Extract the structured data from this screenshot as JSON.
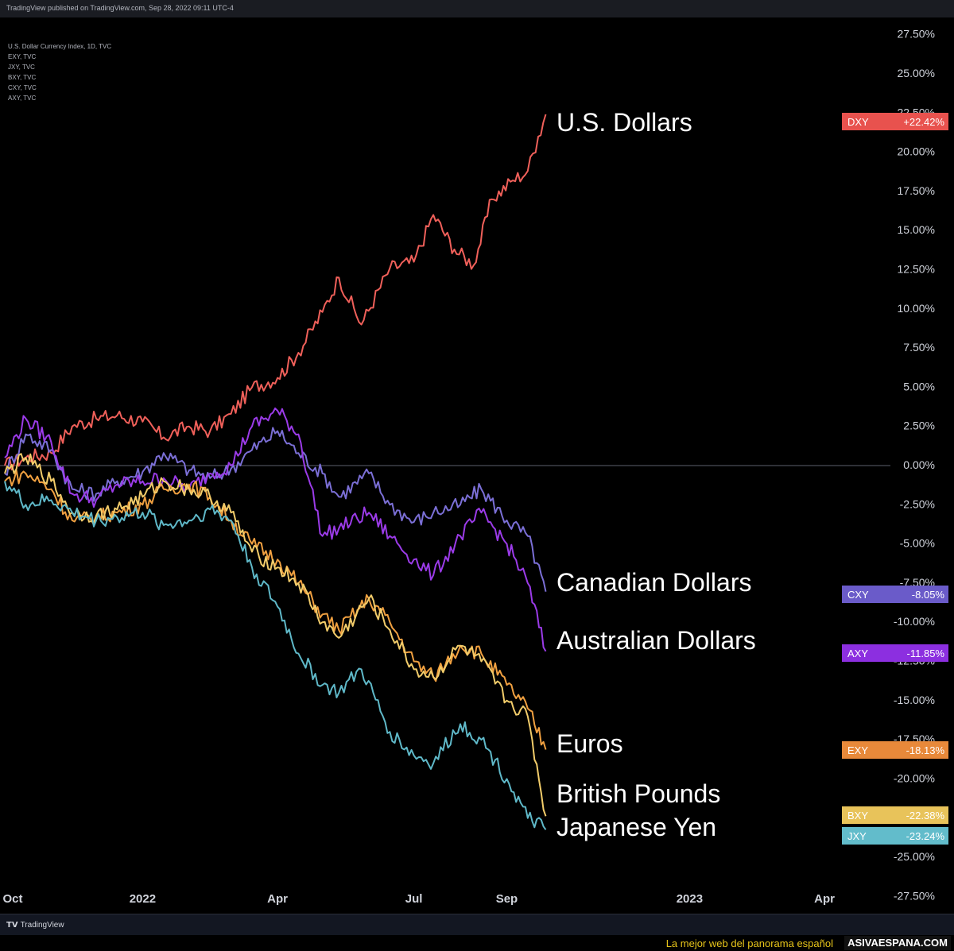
{
  "header": {
    "published_text": "TradingView published on TradingView.com, Sep 28, 2022 09:11 UTC-4"
  },
  "legend": [
    "U.S. Dollar Currency Index, 1D, TVC",
    "EXY, TVC",
    "JXY, TVC",
    "BXY, TVC",
    "CXY, TVC",
    "AXY, TVC"
  ],
  "footer": {
    "tradingview_label": "TradingView",
    "slogan": "La mejor web del panorama español",
    "site": "ASIVAESPANA.COM"
  },
  "chart_data": {
    "type": "line",
    "x_ticks": [
      {
        "label": "Oct",
        "date": "2021-10-01"
      },
      {
        "label": "2022",
        "date": "2022-01-01"
      },
      {
        "label": "Apr",
        "date": "2022-04-01"
      },
      {
        "label": "Jul",
        "date": "2022-07-01"
      },
      {
        "label": "Sep",
        "date": "2022-09-01"
      },
      {
        "label": "2023",
        "date": "2023-01-01"
      },
      {
        "label": "Apr",
        "date": "2023-04-01"
      }
    ],
    "xlim": [
      "2021-10-01",
      "2023-05-15"
    ],
    "ylim": [
      -28.6,
      28.6
    ],
    "y_ticks": [
      27.5,
      25,
      22.5,
      20,
      17.5,
      15,
      12.5,
      10,
      7.5,
      5,
      2.5,
      0,
      -2.5,
      -5,
      -7.5,
      -10,
      -12.5,
      -15,
      -17.5,
      -20,
      -22.5,
      -25,
      -27.5
    ],
    "y_tick_labels": [
      "27.50%",
      "25.00%",
      "22.50%",
      "20.00%",
      "17.50%",
      "15.00%",
      "12.50%",
      "10.00%",
      "7.50%",
      "5.00%",
      "2.50%",
      "0.00%",
      "-2.50%",
      "-5.00%",
      "-7.50%",
      "-10.00%",
      "-12.50%",
      "-15.00%",
      "-17.50%",
      "-20.00%",
      "-22.50%",
      "-25.00%",
      "-27.50%"
    ],
    "grid": false,
    "zero_line": true,
    "series": [
      {
        "ticker": "DXY",
        "annotation": "U.S. Dollars",
        "color": "#f0605a",
        "badge_color": "#e8524e",
        "last_label": "+22.42%",
        "points": [
          [
            "2021-10-01",
            0.0
          ],
          [
            "2021-10-15",
            0.5
          ],
          [
            "2021-11-01",
            0.8
          ],
          [
            "2021-11-15",
            2.5
          ],
          [
            "2021-12-01",
            3.0
          ],
          [
            "2021-12-15",
            3.2
          ],
          [
            "2022-01-01",
            2.8
          ],
          [
            "2022-01-15",
            1.8
          ],
          [
            "2022-02-01",
            2.5
          ],
          [
            "2022-02-15",
            2.2
          ],
          [
            "2022-03-01",
            3.3
          ],
          [
            "2022-03-15",
            5.0
          ],
          [
            "2022-04-01",
            5.6
          ],
          [
            "2022-04-15",
            7.2
          ],
          [
            "2022-05-01",
            9.8
          ],
          [
            "2022-05-12",
            12.0
          ],
          [
            "2022-05-27",
            9.0
          ],
          [
            "2022-06-15",
            12.6
          ],
          [
            "2022-07-01",
            13.0
          ],
          [
            "2022-07-14",
            16.0
          ],
          [
            "2022-07-28",
            13.8
          ],
          [
            "2022-08-10",
            12.8
          ],
          [
            "2022-08-22",
            17.0
          ],
          [
            "2022-09-05",
            18.2
          ],
          [
            "2022-09-15",
            18.8
          ],
          [
            "2022-09-22",
            21.0
          ],
          [
            "2022-09-27",
            22.42
          ]
        ]
      },
      {
        "ticker": "CXY",
        "annotation": "Canadian Dollars",
        "color": "#7b6fd6",
        "badge_color": "#6a5bc9",
        "last_label": "-8.05%",
        "points": [
          [
            "2021-10-01",
            -0.5
          ],
          [
            "2021-10-15",
            2.0
          ],
          [
            "2021-11-01",
            1.0
          ],
          [
            "2021-11-15",
            -1.5
          ],
          [
            "2021-12-01",
            -1.8
          ],
          [
            "2021-12-15",
            -1.0
          ],
          [
            "2022-01-01",
            -0.4
          ],
          [
            "2022-01-15",
            0.8
          ],
          [
            "2022-02-01",
            -0.3
          ],
          [
            "2022-02-15",
            -0.8
          ],
          [
            "2022-03-01",
            -0.2
          ],
          [
            "2022-03-15",
            1.0
          ],
          [
            "2022-04-01",
            2.2
          ],
          [
            "2022-04-15",
            0.8
          ],
          [
            "2022-05-01",
            -0.5
          ],
          [
            "2022-05-12",
            -2.0
          ],
          [
            "2022-06-01",
            -0.5
          ],
          [
            "2022-06-15",
            -2.5
          ],
          [
            "2022-07-01",
            -3.6
          ],
          [
            "2022-07-14",
            -3.0
          ],
          [
            "2022-08-01",
            -2.5
          ],
          [
            "2022-08-15",
            -1.5
          ],
          [
            "2022-09-01",
            -3.5
          ],
          [
            "2022-09-15",
            -4.5
          ],
          [
            "2022-09-27",
            -8.05
          ]
        ]
      },
      {
        "ticker": "AXY",
        "annotation": "Australian Dollars",
        "color": "#9b3be8",
        "badge_color": "#8c2fe0",
        "last_label": "-11.85%",
        "points": [
          [
            "2021-10-01",
            0.5
          ],
          [
            "2021-10-15",
            3.0
          ],
          [
            "2021-11-01",
            1.5
          ],
          [
            "2021-11-15",
            -1.8
          ],
          [
            "2021-12-01",
            -2.2
          ],
          [
            "2021-12-15",
            -1.2
          ],
          [
            "2022-01-01",
            -1.0
          ],
          [
            "2022-01-15",
            -0.8
          ],
          [
            "2022-02-01",
            -1.5
          ],
          [
            "2022-02-15",
            -0.5
          ],
          [
            "2022-03-01",
            0.0
          ],
          [
            "2022-03-15",
            2.5
          ],
          [
            "2022-04-01",
            3.5
          ],
          [
            "2022-04-15",
            2.0
          ],
          [
            "2022-05-01",
            -4.5
          ],
          [
            "2022-05-12",
            -4.0
          ],
          [
            "2022-06-01",
            -3.0
          ],
          [
            "2022-06-15",
            -4.5
          ],
          [
            "2022-07-01",
            -6.0
          ],
          [
            "2022-07-14",
            -7.0
          ],
          [
            "2022-08-01",
            -4.5
          ],
          [
            "2022-08-15",
            -3.0
          ],
          [
            "2022-09-01",
            -5.0
          ],
          [
            "2022-09-15",
            -7.5
          ],
          [
            "2022-09-27",
            -11.85
          ]
        ]
      },
      {
        "ticker": "EXY",
        "annotation": "Euros",
        "color": "#f0a040",
        "badge_color": "#e8893a",
        "last_label": "-18.13%",
        "points": [
          [
            "2021-10-01",
            -1.0
          ],
          [
            "2021-10-15",
            -0.5
          ],
          [
            "2021-11-01",
            -1.5
          ],
          [
            "2021-11-15",
            -3.5
          ],
          [
            "2021-12-01",
            -3.3
          ],
          [
            "2021-12-15",
            -3.0
          ],
          [
            "2022-01-01",
            -2.5
          ],
          [
            "2022-01-15",
            -1.5
          ],
          [
            "2022-02-01",
            -1.2
          ],
          [
            "2022-02-15",
            -2.0
          ],
          [
            "2022-03-01",
            -3.5
          ],
          [
            "2022-03-15",
            -5.0
          ],
          [
            "2022-04-01",
            -6.0
          ],
          [
            "2022-04-15",
            -7.5
          ],
          [
            "2022-05-01",
            -9.5
          ],
          [
            "2022-05-12",
            -10.5
          ],
          [
            "2022-06-01",
            -8.5
          ],
          [
            "2022-06-15",
            -10.0
          ],
          [
            "2022-07-01",
            -12.5
          ],
          [
            "2022-07-14",
            -13.5
          ],
          [
            "2022-08-01",
            -11.5
          ],
          [
            "2022-08-15",
            -12.0
          ],
          [
            "2022-09-01",
            -14.0
          ],
          [
            "2022-09-15",
            -15.5
          ],
          [
            "2022-09-27",
            -18.13
          ]
        ]
      },
      {
        "ticker": "BXY",
        "annotation": "British Pounds",
        "color": "#f2cc6a",
        "badge_color": "#e8c35a",
        "last_label": "-22.38%",
        "points": [
          [
            "2021-10-01",
            -0.5
          ],
          [
            "2021-10-15",
            0.5
          ],
          [
            "2021-11-01",
            -1.0
          ],
          [
            "2021-11-15",
            -3.0
          ],
          [
            "2021-12-01",
            -3.2
          ],
          [
            "2021-12-15",
            -2.8
          ],
          [
            "2022-01-01",
            -2.0
          ],
          [
            "2022-01-15",
            -1.0
          ],
          [
            "2022-02-01",
            -1.5
          ],
          [
            "2022-02-15",
            -2.0
          ],
          [
            "2022-03-01",
            -3.0
          ],
          [
            "2022-03-15",
            -5.5
          ],
          [
            "2022-04-01",
            -6.5
          ],
          [
            "2022-04-15",
            -7.5
          ],
          [
            "2022-05-01",
            -10.0
          ],
          [
            "2022-05-12",
            -11.0
          ],
          [
            "2022-06-01",
            -8.5
          ],
          [
            "2022-06-15",
            -10.5
          ],
          [
            "2022-07-01",
            -13.0
          ],
          [
            "2022-07-14",
            -13.5
          ],
          [
            "2022-08-01",
            -11.5
          ],
          [
            "2022-08-15",
            -12.5
          ],
          [
            "2022-09-01",
            -15.0
          ],
          [
            "2022-09-15",
            -16.0
          ],
          [
            "2022-09-27",
            -22.38
          ]
        ]
      },
      {
        "ticker": "JXY",
        "annotation": "Japanese Yen",
        "color": "#5fb8c8",
        "badge_color": "#62bccb",
        "last_label": "-23.24%",
        "points": [
          [
            "2021-10-01",
            -1.0
          ],
          [
            "2021-10-15",
            -2.5
          ],
          [
            "2021-11-01",
            -2.2
          ],
          [
            "2021-11-15",
            -3.0
          ],
          [
            "2021-12-01",
            -3.5
          ],
          [
            "2021-12-15",
            -3.3
          ],
          [
            "2022-01-01",
            -3.0
          ],
          [
            "2022-01-15",
            -3.8
          ],
          [
            "2022-02-01",
            -3.5
          ],
          [
            "2022-02-15",
            -2.8
          ],
          [
            "2022-03-01",
            -3.5
          ],
          [
            "2022-03-15",
            -6.5
          ],
          [
            "2022-04-01",
            -9.0
          ],
          [
            "2022-04-15",
            -12.0
          ],
          [
            "2022-05-01",
            -14.0
          ],
          [
            "2022-05-12",
            -14.5
          ],
          [
            "2022-05-27",
            -13.0
          ],
          [
            "2022-06-15",
            -17.0
          ],
          [
            "2022-07-01",
            -18.5
          ],
          [
            "2022-07-14",
            -19.0
          ],
          [
            "2022-08-01",
            -16.5
          ],
          [
            "2022-08-15",
            -17.5
          ],
          [
            "2022-09-01",
            -20.0
          ],
          [
            "2022-09-15",
            -22.5
          ],
          [
            "2022-09-27",
            -23.24
          ]
        ]
      }
    ]
  }
}
